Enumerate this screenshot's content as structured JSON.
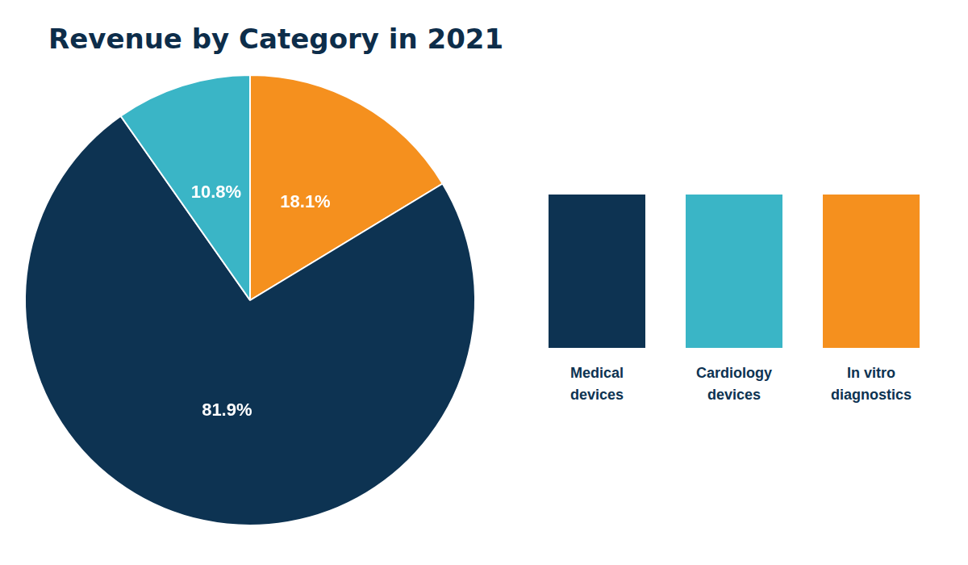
{
  "chart_data": {
    "type": "pie",
    "title": "Revenue by Category in 2021",
    "values": [
      18.1,
      81.9,
      10.8
    ],
    "value_labels": [
      "18.1%",
      "81.9%",
      "10.8%"
    ],
    "colors": [
      "#f5901e",
      "#0d3352",
      "#3ab5c6"
    ],
    "data_labels": true,
    "legend": false,
    "annotations": [
      {
        "text": "Medical\ndevices",
        "color": "#0d3352"
      },
      {
        "text": "Cardiology\ndevices",
        "color": "#3ab5c6"
      },
      {
        "text": "In vitro\ndiagnostics",
        "color": "#f5901e"
      }
    ]
  }
}
